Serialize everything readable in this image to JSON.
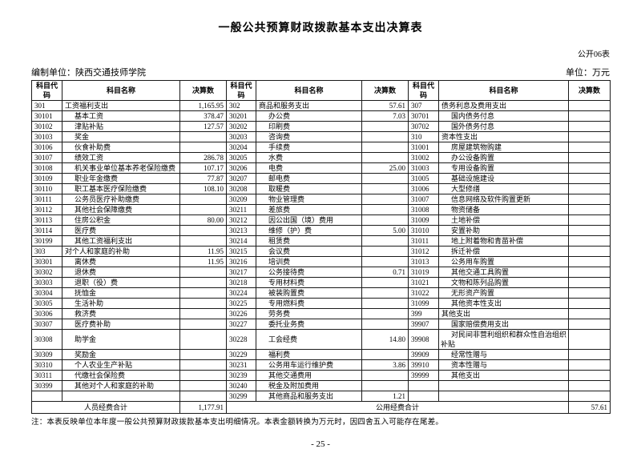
{
  "page": {
    "title": "一般公共预算财政拨款基本支出决算表",
    "table_code": "公开06表",
    "prepared_by_label": "编制单位：陕西交通技师学院",
    "unit_label": "单位：万元",
    "note": "注：本表反映单位本年度一般公共预算财政拨款基本支出明细情况。本表金额转换为万元时，因四舍五入可能存在尾差。",
    "page_number": "- 25 -"
  },
  "table": {
    "header": [
      "科目代码",
      "科目名称",
      "决算数",
      "科目代码",
      "科目名称",
      "决算数",
      "科目代码",
      "科目名称",
      "决算数"
    ],
    "rows": [
      [
        "301",
        "工资福利支出",
        "1,165.95",
        "302",
        "商品和服务支出",
        "57.61",
        "307",
        "债务利息及费用支出",
        ""
      ],
      [
        "30101",
        "基本工资",
        "378.47",
        "30201",
        "办公费",
        "7.03",
        "30701",
        "国内债务付息",
        ""
      ],
      [
        "30102",
        "津贴补贴",
        "127.57",
        "30202",
        "印刷费",
        "",
        "30702",
        "国外债务付息",
        ""
      ],
      [
        "30103",
        "奖金",
        "",
        "30203",
        "咨询费",
        "",
        "310",
        "资本性支出",
        ""
      ],
      [
        "30106",
        "伙食补助费",
        "",
        "30204",
        "手续费",
        "",
        "31001",
        "房屋建筑物购建",
        ""
      ],
      [
        "30107",
        "绩效工资",
        "286.78",
        "30205",
        "水费",
        "",
        "31002",
        "办公设备购置",
        ""
      ],
      [
        "30108",
        "机关事业单位基本养老保险缴费",
        "107.17",
        "30206",
        "电费",
        "25.00",
        "31003",
        "专用设备购置",
        ""
      ],
      [
        "30109",
        "职业年金缴费",
        "77.87",
        "30207",
        "邮电费",
        "",
        "31005",
        "基础设施建设",
        ""
      ],
      [
        "30110",
        "职工基本医疗保险缴费",
        "108.10",
        "30208",
        "取暖费",
        "",
        "31006",
        "大型修缮",
        ""
      ],
      [
        "30111",
        "公务员医疗补助缴费",
        "",
        "30209",
        "物业管理费",
        "",
        "31007",
        "信息网络及软件购置更新",
        ""
      ],
      [
        "30112",
        "其他社会保障缴费",
        "",
        "30211",
        "差旅费",
        "",
        "31008",
        "物资储备",
        ""
      ],
      [
        "30113",
        "住房公积金",
        "80.00",
        "30212",
        "因公出国（境）费用",
        "",
        "31009",
        "土地补偿",
        ""
      ],
      [
        "30114",
        "医疗费",
        "",
        "30213",
        "维修（护）费",
        "5.00",
        "31010",
        "安置补助",
        ""
      ],
      [
        "30199",
        "其他工资福利支出",
        "",
        "30214",
        "租赁费",
        "",
        "31011",
        "地上附着物和青苗补偿",
        ""
      ],
      [
        "303",
        "对个人和家庭的补助",
        "11.95",
        "30215",
        "会议费",
        "",
        "31012",
        "拆迁补偿",
        ""
      ],
      [
        "30301",
        "离休费",
        "11.95",
        "30216",
        "培训费",
        "",
        "31013",
        "公务用车购置",
        ""
      ],
      [
        "30302",
        "退休费",
        "",
        "30217",
        "公务接待费",
        "0.71",
        "31019",
        "其他交通工具购置",
        ""
      ],
      [
        "30303",
        "退职（役）费",
        "",
        "30218",
        "专用材料费",
        "",
        "31021",
        "文物和陈列品购置",
        ""
      ],
      [
        "30304",
        "抚恤金",
        "",
        "30224",
        "被装购置费",
        "",
        "31022",
        "无形资产购置",
        ""
      ],
      [
        "30305",
        "生活补助",
        "",
        "30225",
        "专用燃料费",
        "",
        "31099",
        "其他资本性支出",
        ""
      ],
      [
        "30306",
        "救济费",
        "",
        "30226",
        "劳务费",
        "",
        "399",
        "其他支出",
        ""
      ],
      [
        "30307",
        "医疗费补助",
        "",
        "30227",
        "委托业务费",
        "",
        "39907",
        "国家赔偿费用支出",
        ""
      ],
      [
        "30308",
        "助学金",
        "",
        "30228",
        "工会经费",
        "14.80",
        "39908",
        "对民间非营利组织和群众性自治组织补贴",
        ""
      ],
      [
        "30309",
        "奖励金",
        "",
        "30229",
        "福利费",
        "",
        "39909",
        "经常性赠与",
        ""
      ],
      [
        "30310",
        "个人农业生产补贴",
        "",
        "30231",
        "公务用车运行维护费",
        "3.86",
        "39910",
        "资本性赠与",
        ""
      ],
      [
        "30311",
        "代缴社会保险费",
        "",
        "30239",
        "其他交通费用",
        "",
        "39999",
        "其他支出",
        ""
      ],
      [
        "30399",
        "其他对个人和家庭的补助",
        "",
        "30240",
        "税金及附加费用",
        "",
        "",
        "",
        ""
      ],
      [
        "",
        "",
        "",
        "30299",
        "其他商品和服务支出",
        "1.21",
        "",
        "",
        ""
      ]
    ],
    "footer": {
      "personnel_label": "人员经费合计",
      "personnel_total": "1,177.91",
      "public_label": "公用经费合计",
      "public_total": "57.61"
    }
  }
}
